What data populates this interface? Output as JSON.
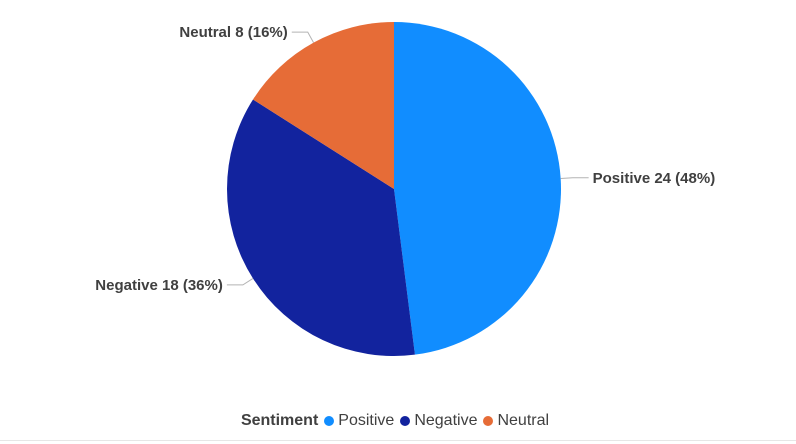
{
  "chart_data": {
    "type": "pie",
    "title": "",
    "legend": {
      "title": "Sentiment",
      "placement": "bottom"
    },
    "slices": [
      {
        "name": "Positive",
        "value": 24,
        "percent": 48,
        "color": "#118dff",
        "label": "Positive 24 (48%)"
      },
      {
        "name": "Negative",
        "value": 18,
        "percent": 36,
        "color": "#12239e",
        "label": "Negative 18 (36%)"
      },
      {
        "name": "Neutral",
        "value": 8,
        "percent": 16,
        "color": "#e66c37",
        "label": "Neutral 8 (16%)"
      }
    ]
  }
}
